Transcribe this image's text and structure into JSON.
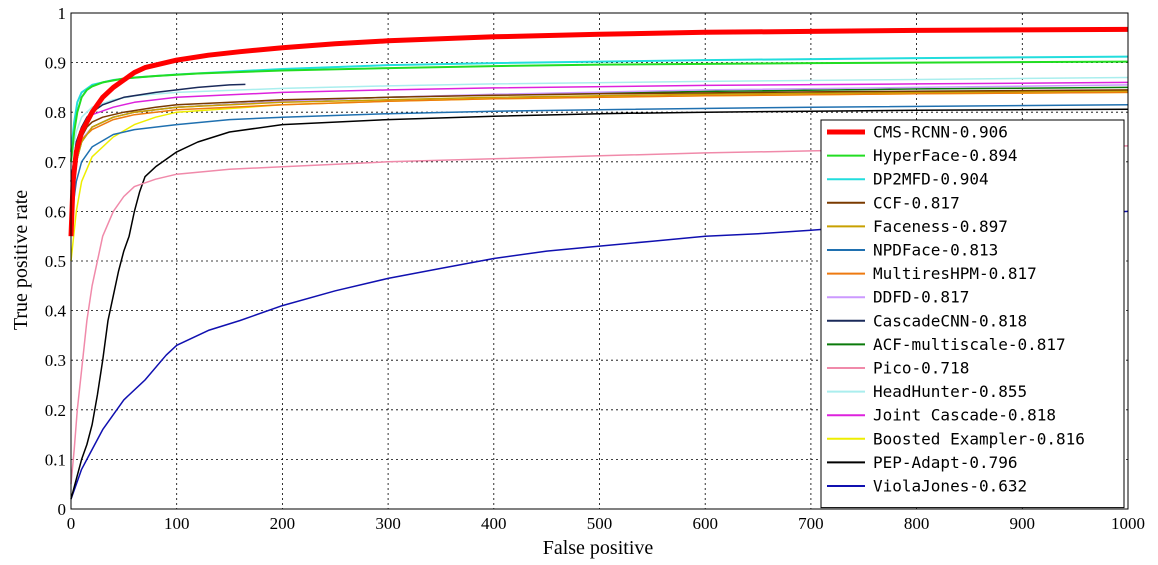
{
  "chart_data": {
    "type": "line",
    "title": "",
    "xlabel": "False positive",
    "ylabel": "True positive rate",
    "xlim": [
      0,
      1000
    ],
    "ylim": [
      0,
      1
    ],
    "xticks": [
      "0",
      "100",
      "200",
      "300",
      "400",
      "500",
      "600",
      "700",
      "800",
      "900",
      "1000"
    ],
    "yticks": [
      "0",
      "0.1",
      "0.2",
      "0.3",
      "0.4",
      "0.5",
      "0.6",
      "0.7",
      "0.8",
      "0.9",
      "1"
    ],
    "grid": true,
    "legend_position": "lower-right",
    "series": [
      {
        "name": "CMS-RCNN-0.906",
        "color": "#ff0000",
        "linewidth": 5,
        "points": [
          [
            0,
            0.55
          ],
          [
            2,
            0.66
          ],
          [
            5,
            0.72
          ],
          [
            10,
            0.76
          ],
          [
            15,
            0.78
          ],
          [
            20,
            0.8
          ],
          [
            30,
            0.83
          ],
          [
            40,
            0.85
          ],
          [
            50,
            0.865
          ],
          [
            60,
            0.88
          ],
          [
            70,
            0.89
          ],
          [
            80,
            0.895
          ],
          [
            100,
            0.905
          ],
          [
            130,
            0.915
          ],
          [
            160,
            0.922
          ],
          [
            200,
            0.93
          ],
          [
            250,
            0.938
          ],
          [
            300,
            0.944
          ],
          [
            400,
            0.952
          ],
          [
            500,
            0.957
          ],
          [
            600,
            0.961
          ],
          [
            700,
            0.963
          ],
          [
            800,
            0.965
          ],
          [
            900,
            0.966
          ],
          [
            1000,
            0.967
          ]
        ]
      },
      {
        "name": "HyperFace-0.894",
        "color": "#22dd22",
        "linewidth": 2,
        "points": [
          [
            0,
            0.7
          ],
          [
            3,
            0.76
          ],
          [
            6,
            0.8
          ],
          [
            10,
            0.83
          ],
          [
            15,
            0.845
          ],
          [
            20,
            0.852
          ],
          [
            30,
            0.86
          ],
          [
            50,
            0.868
          ],
          [
            80,
            0.873
          ],
          [
            120,
            0.878
          ],
          [
            200,
            0.884
          ],
          [
            300,
            0.889
          ],
          [
            400,
            0.893
          ],
          [
            500,
            0.896
          ],
          [
            700,
            0.899
          ],
          [
            1000,
            0.902
          ]
        ]
      },
      {
        "name": "DP2MFD-0.904",
        "color": "#22dddd",
        "linewidth": 2,
        "points": [
          [
            0,
            0.72
          ],
          [
            3,
            0.78
          ],
          [
            6,
            0.82
          ],
          [
            10,
            0.84
          ],
          [
            20,
            0.855
          ],
          [
            40,
            0.865
          ],
          [
            60,
            0.87
          ],
          [
            100,
            0.876
          ],
          [
            200,
            0.887
          ],
          [
            300,
            0.895
          ],
          [
            400,
            0.899
          ],
          [
            600,
            0.905
          ],
          [
            800,
            0.909
          ],
          [
            1000,
            0.912
          ]
        ]
      },
      {
        "name": "CCF-0.817",
        "color": "#7a3a00",
        "linewidth": 1.5,
        "points": [
          [
            0,
            0.66
          ],
          [
            5,
            0.72
          ],
          [
            10,
            0.75
          ],
          [
            15,
            0.77
          ],
          [
            20,
            0.78
          ],
          [
            30,
            0.79
          ],
          [
            50,
            0.8
          ],
          [
            80,
            0.81
          ],
          [
            100,
            0.815
          ],
          [
            200,
            0.825
          ],
          [
            300,
            0.83
          ],
          [
            400,
            0.834
          ],
          [
            500,
            0.837
          ],
          [
            700,
            0.841
          ],
          [
            1000,
            0.845
          ]
        ]
      },
      {
        "name": "Faceness-0.897",
        "color": "#c8a000",
        "linewidth": 1.5,
        "points": [
          [
            0,
            0.62
          ],
          [
            5,
            0.7
          ],
          [
            10,
            0.74
          ],
          [
            20,
            0.77
          ],
          [
            40,
            0.79
          ],
          [
            60,
            0.8
          ],
          [
            100,
            0.81
          ],
          [
            200,
            0.82
          ],
          [
            300,
            0.825
          ],
          [
            400,
            0.83
          ],
          [
            600,
            0.836
          ],
          [
            800,
            0.84
          ],
          [
            1000,
            0.843
          ]
        ]
      },
      {
        "name": "NPDFace-0.813",
        "color": "#1f70b0",
        "linewidth": 1.5,
        "points": [
          [
            0,
            0.58
          ],
          [
            5,
            0.66
          ],
          [
            10,
            0.7
          ],
          [
            20,
            0.73
          ],
          [
            40,
            0.755
          ],
          [
            60,
            0.765
          ],
          [
            100,
            0.775
          ],
          [
            150,
            0.785
          ],
          [
            200,
            0.79
          ],
          [
            300,
            0.797
          ],
          [
            400,
            0.802
          ],
          [
            500,
            0.805
          ],
          [
            700,
            0.81
          ],
          [
            1000,
            0.815
          ]
        ]
      },
      {
        "name": "MultiresHPM-0.817",
        "color": "#ee7a10",
        "linewidth": 1.5,
        "points": [
          [
            0,
            0.64
          ],
          [
            5,
            0.71
          ],
          [
            10,
            0.745
          ],
          [
            20,
            0.765
          ],
          [
            40,
            0.785
          ],
          [
            60,
            0.795
          ],
          [
            100,
            0.805
          ],
          [
            200,
            0.815
          ],
          [
            300,
            0.822
          ],
          [
            400,
            0.827
          ],
          [
            600,
            0.833
          ],
          [
            800,
            0.837
          ],
          [
            1000,
            0.84
          ]
        ]
      },
      {
        "name": "DDFD-0.817",
        "color": "#cc99ff",
        "linewidth": 1.5,
        "points": [
          [
            0,
            0.64
          ],
          [
            5,
            0.71
          ],
          [
            10,
            0.745
          ],
          [
            20,
            0.77
          ],
          [
            40,
            0.79
          ],
          [
            60,
            0.8
          ],
          [
            100,
            0.81
          ],
          [
            200,
            0.822
          ],
          [
            300,
            0.83
          ],
          [
            400,
            0.836
          ],
          [
            600,
            0.845
          ],
          [
            800,
            0.85
          ],
          [
            1000,
            0.855
          ]
        ]
      },
      {
        "name": "CascadeCNN-0.818",
        "color": "#1a2a5a",
        "linewidth": 1.5,
        "points": [
          [
            0,
            0.66
          ],
          [
            5,
            0.74
          ],
          [
            10,
            0.77
          ],
          [
            15,
            0.79
          ],
          [
            20,
            0.8
          ],
          [
            30,
            0.815
          ],
          [
            50,
            0.83
          ],
          [
            80,
            0.84
          ],
          [
            100,
            0.845
          ],
          [
            120,
            0.85
          ],
          [
            150,
            0.855
          ],
          [
            165,
            0.856
          ]
        ]
      },
      {
        "name": "ACF-multiscale-0.817",
        "color": "#0a7a0a",
        "linewidth": 1.5,
        "points": [
          [
            0,
            0.62
          ],
          [
            5,
            0.7
          ],
          [
            10,
            0.74
          ],
          [
            20,
            0.77
          ],
          [
            40,
            0.79
          ],
          [
            60,
            0.8
          ],
          [
            100,
            0.81
          ],
          [
            200,
            0.822
          ],
          [
            300,
            0.83
          ],
          [
            400,
            0.835
          ],
          [
            600,
            0.842
          ],
          [
            800,
            0.847
          ],
          [
            1000,
            0.85
          ]
        ]
      },
      {
        "name": "Pico-0.718",
        "color": "#f08aaa",
        "linewidth": 1.5,
        "points": [
          [
            0,
            0.05
          ],
          [
            3,
            0.12
          ],
          [
            6,
            0.2
          ],
          [
            10,
            0.28
          ],
          [
            15,
            0.38
          ],
          [
            20,
            0.45
          ],
          [
            25,
            0.5
          ],
          [
            30,
            0.55
          ],
          [
            40,
            0.6
          ],
          [
            50,
            0.63
          ],
          [
            60,
            0.65
          ],
          [
            80,
            0.665
          ],
          [
            100,
            0.675
          ],
          [
            150,
            0.685
          ],
          [
            200,
            0.69
          ],
          [
            300,
            0.7
          ],
          [
            400,
            0.706
          ],
          [
            500,
            0.712
          ],
          [
            600,
            0.718
          ],
          [
            700,
            0.722
          ],
          [
            800,
            0.726
          ],
          [
            900,
            0.729
          ],
          [
            1000,
            0.732
          ]
        ]
      },
      {
        "name": "HeadHunter-0.855",
        "color": "#aaeeee",
        "linewidth": 1.5,
        "points": [
          [
            0,
            0.7
          ],
          [
            5,
            0.76
          ],
          [
            10,
            0.79
          ],
          [
            20,
            0.81
          ],
          [
            40,
            0.825
          ],
          [
            60,
            0.833
          ],
          [
            100,
            0.84
          ],
          [
            200,
            0.848
          ],
          [
            300,
            0.853
          ],
          [
            400,
            0.857
          ],
          [
            600,
            0.862
          ],
          [
            800,
            0.866
          ],
          [
            1000,
            0.87
          ]
        ]
      },
      {
        "name": "Joint Cascade-0.818",
        "color": "#dd22dd",
        "linewidth": 1.5,
        "points": [
          [
            0,
            0.66
          ],
          [
            5,
            0.74
          ],
          [
            10,
            0.77
          ],
          [
            20,
            0.795
          ],
          [
            40,
            0.81
          ],
          [
            60,
            0.82
          ],
          [
            100,
            0.83
          ],
          [
            200,
            0.84
          ],
          [
            300,
            0.845
          ],
          [
            400,
            0.849
          ],
          [
            600,
            0.854
          ],
          [
            800,
            0.857
          ],
          [
            1000,
            0.86
          ]
        ]
      },
      {
        "name": "Boosted Exampler-0.816",
        "color": "#eeee00",
        "linewidth": 1.5,
        "points": [
          [
            0,
            0.5
          ],
          [
            5,
            0.6
          ],
          [
            10,
            0.66
          ],
          [
            20,
            0.71
          ],
          [
            40,
            0.75
          ],
          [
            60,
            0.775
          ],
          [
            80,
            0.79
          ],
          [
            100,
            0.8
          ],
          [
            200,
            0.815
          ],
          [
            300,
            0.822
          ],
          [
            400,
            0.827
          ],
          [
            600,
            0.833
          ],
          [
            800,
            0.837
          ],
          [
            1000,
            0.84
          ]
        ]
      },
      {
        "name": "PEP-Adapt-0.796",
        "color": "#000000",
        "linewidth": 1.5,
        "points": [
          [
            0,
            0.02
          ],
          [
            5,
            0.06
          ],
          [
            10,
            0.1
          ],
          [
            15,
            0.13
          ],
          [
            20,
            0.17
          ],
          [
            25,
            0.23
          ],
          [
            30,
            0.3
          ],
          [
            35,
            0.38
          ],
          [
            40,
            0.43
          ],
          [
            45,
            0.48
          ],
          [
            50,
            0.52
          ],
          [
            55,
            0.55
          ],
          [
            60,
            0.6
          ],
          [
            65,
            0.64
          ],
          [
            70,
            0.67
          ],
          [
            80,
            0.69
          ],
          [
            100,
            0.72
          ],
          [
            120,
            0.74
          ],
          [
            150,
            0.76
          ],
          [
            200,
            0.775
          ],
          [
            300,
            0.785
          ],
          [
            400,
            0.792
          ],
          [
            500,
            0.797
          ],
          [
            600,
            0.8
          ],
          [
            700,
            0.802
          ],
          [
            800,
            0.804
          ],
          [
            1000,
            0.806
          ]
        ]
      },
      {
        "name": "ViolaJones-0.632",
        "color": "#1010b0",
        "linewidth": 1.5,
        "points": [
          [
            0,
            0.02
          ],
          [
            5,
            0.05
          ],
          [
            10,
            0.08
          ],
          [
            20,
            0.12
          ],
          [
            30,
            0.16
          ],
          [
            50,
            0.22
          ],
          [
            70,
            0.26
          ],
          [
            90,
            0.31
          ],
          [
            100,
            0.33
          ],
          [
            130,
            0.36
          ],
          [
            160,
            0.38
          ],
          [
            200,
            0.41
          ],
          [
            250,
            0.44
          ],
          [
            300,
            0.465
          ],
          [
            350,
            0.485
          ],
          [
            400,
            0.505
          ],
          [
            450,
            0.52
          ],
          [
            500,
            0.53
          ],
          [
            550,
            0.54
          ],
          [
            600,
            0.55
          ],
          [
            650,
            0.555
          ],
          [
            700,
            0.562
          ],
          [
            750,
            0.57
          ],
          [
            800,
            0.578
          ],
          [
            850,
            0.585
          ],
          [
            900,
            0.59
          ],
          [
            950,
            0.595
          ],
          [
            1000,
            0.6
          ]
        ]
      }
    ]
  }
}
